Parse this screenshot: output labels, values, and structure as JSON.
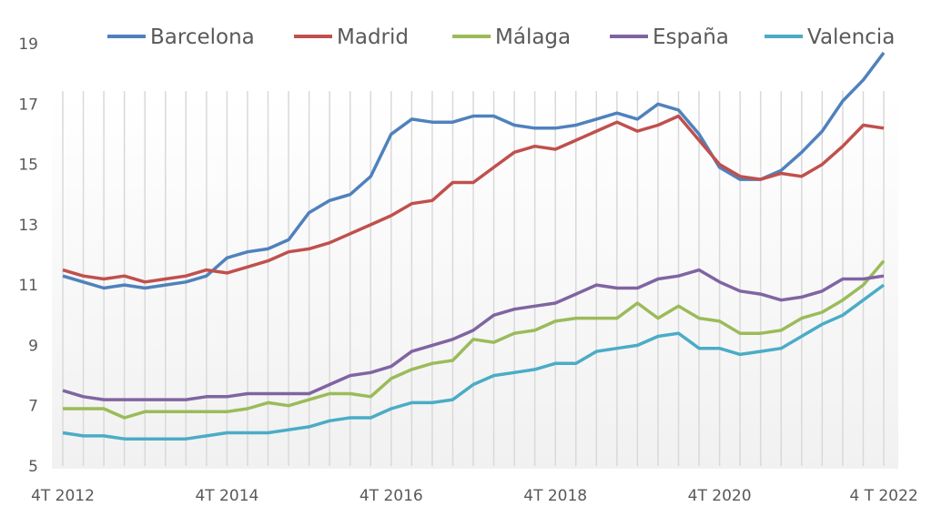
{
  "chart_data": {
    "type": "line",
    "title": "",
    "xlabel": "",
    "ylabel": "",
    "ylim": [
      5,
      19
    ],
    "yticks": [
      5,
      7,
      9,
      11,
      13,
      15,
      17,
      19
    ],
    "xtick_labels": [
      "4T 2012",
      "4T 2014",
      "4T 2016",
      "4T 2018",
      "4T 2020",
      "4 T 2022"
    ],
    "x_tick_every_quarters": 8,
    "quarters_count": 41,
    "grid": "vertical lines at each quarter",
    "legend_position": "top",
    "series": [
      {
        "name": "Barcelona",
        "color": "#4f81bd",
        "values": [
          11.3,
          11.1,
          10.9,
          11.0,
          10.9,
          11.0,
          11.1,
          11.3,
          11.9,
          12.1,
          12.2,
          12.5,
          13.4,
          13.8,
          14.0,
          14.6,
          16.0,
          16.5,
          16.4,
          16.4,
          16.6,
          16.6,
          16.3,
          16.2,
          16.2,
          16.3,
          16.5,
          16.7,
          16.5,
          17.0,
          16.8,
          16.0,
          14.9,
          14.5,
          14.5,
          14.8,
          15.4,
          16.1,
          17.1,
          17.8,
          18.7
        ]
      },
      {
        "name": "Madrid",
        "color": "#c0504d",
        "values": [
          11.5,
          11.3,
          11.2,
          11.3,
          11.1,
          11.2,
          11.3,
          11.5,
          11.4,
          11.6,
          11.8,
          12.1,
          12.2,
          12.4,
          12.7,
          13.0,
          13.3,
          13.7,
          13.8,
          14.4,
          14.4,
          14.9,
          15.4,
          15.6,
          15.5,
          15.8,
          16.1,
          16.4,
          16.1,
          16.3,
          16.6,
          15.8,
          15.0,
          14.6,
          14.5,
          14.7,
          14.6,
          15.0,
          15.6,
          16.3,
          16.2
        ]
      },
      {
        "name": "Málaga",
        "color": "#9bbb59",
        "values": [
          6.9,
          6.9,
          6.9,
          6.6,
          6.8,
          6.8,
          6.8,
          6.8,
          6.8,
          6.9,
          7.1,
          7.0,
          7.2,
          7.4,
          7.4,
          7.3,
          7.9,
          8.2,
          8.4,
          8.5,
          9.2,
          9.1,
          9.4,
          9.5,
          9.8,
          9.9,
          9.9,
          9.9,
          10.4,
          9.9,
          10.3,
          9.9,
          9.8,
          9.4,
          9.4,
          9.5,
          9.9,
          10.1,
          10.5,
          11.0,
          11.8
        ]
      },
      {
        "name": "España",
        "color": "#8064a2",
        "values": [
          7.5,
          7.3,
          7.2,
          7.2,
          7.2,
          7.2,
          7.2,
          7.3,
          7.3,
          7.4,
          7.4,
          7.4,
          7.4,
          7.7,
          8.0,
          8.1,
          8.3,
          8.8,
          9.0,
          9.2,
          9.5,
          10.0,
          10.2,
          10.3,
          10.4,
          10.7,
          11.0,
          10.9,
          10.9,
          11.2,
          11.3,
          11.5,
          11.1,
          10.8,
          10.7,
          10.5,
          10.6,
          10.8,
          11.2,
          11.2,
          11.3
        ]
      },
      {
        "name": "Valencia",
        "color": "#4bacc6",
        "values": [
          6.1,
          6.0,
          6.0,
          5.9,
          5.9,
          5.9,
          5.9,
          6.0,
          6.1,
          6.1,
          6.1,
          6.2,
          6.3,
          6.5,
          6.6,
          6.6,
          6.9,
          7.1,
          7.1,
          7.2,
          7.7,
          8.0,
          8.1,
          8.2,
          8.4,
          8.4,
          8.8,
          8.9,
          9.0,
          9.3,
          9.4,
          8.9,
          8.9,
          8.7,
          8.8,
          8.9,
          9.3,
          9.7,
          10.0,
          10.5,
          11.0
        ]
      }
    ]
  }
}
